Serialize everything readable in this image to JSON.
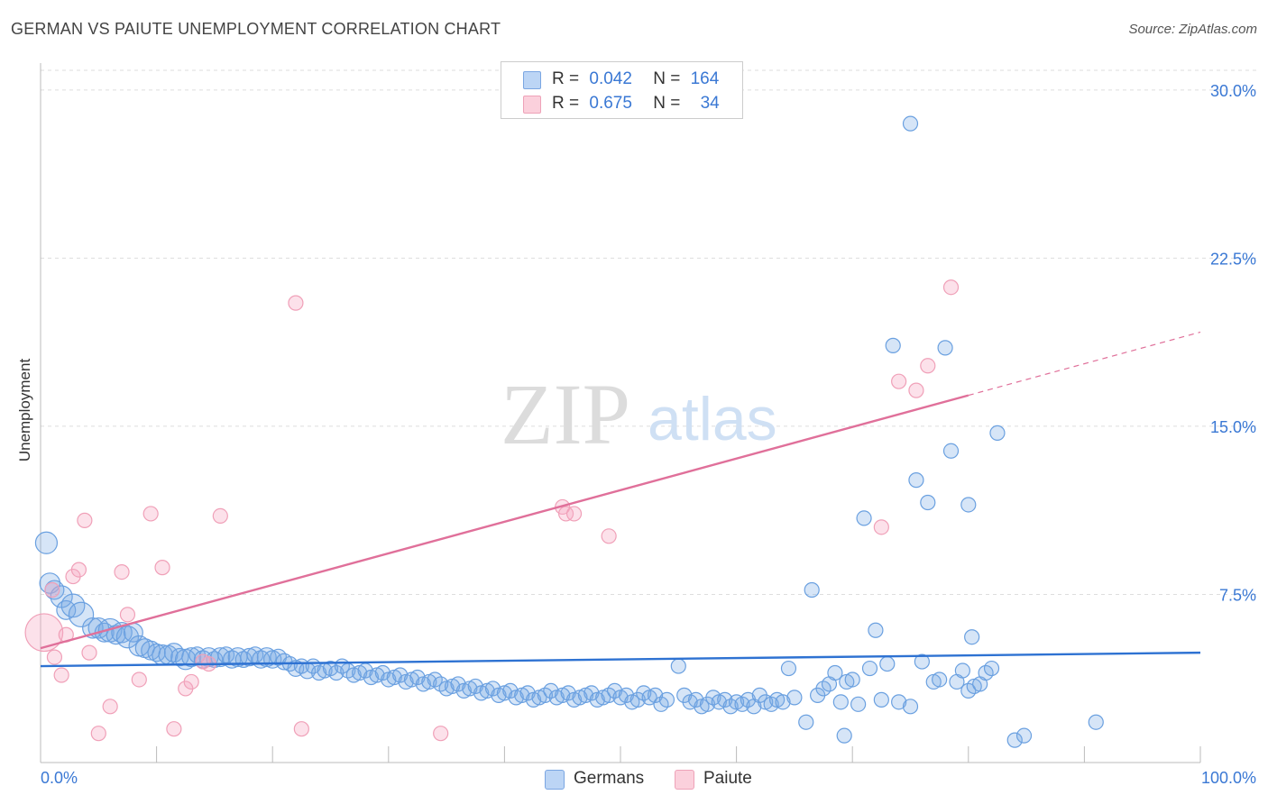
{
  "header": {
    "title": "GERMAN VS PAIUTE UNEMPLOYMENT CORRELATION CHART",
    "source": "Source: ZipAtlas.com"
  },
  "watermark": {
    "zip": "ZIP",
    "atlas": "atlas"
  },
  "legend": {
    "rows": [
      {
        "r_label": "R =",
        "r_value": "0.042",
        "n_label": "N =",
        "n_value": "164",
        "color": "#a9c8f0"
      },
      {
        "r_label": "R =",
        "r_value": "0.675",
        "n_label": "N =",
        "n_value": "34",
        "color": "#f5b8c9"
      }
    ]
  },
  "bottom_legend": {
    "germans": "Germans",
    "paiute": "Paiute"
  },
  "colors": {
    "german_fill": "rgba(120,170,230,0.30)",
    "german_stroke": "#6aa0e0",
    "german_line": "#2e72d2",
    "paiute_fill": "rgba(245,170,195,0.35)",
    "paiute_stroke": "#f0a0b8",
    "paiute_line": "#e0709a",
    "axis_text": "#3a78d4",
    "grid": "#dddddd"
  },
  "chart_data": {
    "type": "scatter",
    "title": "GERMAN VS PAIUTE UNEMPLOYMENT CORRELATION CHART",
    "xlabel": "",
    "ylabel": "Unemployment",
    "xlim": [
      0,
      100
    ],
    "ylim": [
      0,
      31.2
    ],
    "x_tick_labels": [
      "0.0%",
      "100.0%"
    ],
    "y_ticks": [
      7.5,
      15.0,
      22.5,
      30.0
    ],
    "y_tick_labels": [
      "7.5%",
      "15.0%",
      "22.5%",
      "30.0%"
    ],
    "grid": true,
    "legend_position": "top-center",
    "series": [
      {
        "name": "Germans",
        "r": 0.042,
        "n": 164,
        "trend": {
          "x": [
            0,
            100
          ],
          "y": [
            4.3,
            4.9
          ]
        },
        "points": [
          [
            0.5,
            9.8,
            1.5
          ],
          [
            0.8,
            8.0,
            1.4
          ],
          [
            1.2,
            7.7,
            1.3
          ],
          [
            1.8,
            7.4,
            1.5
          ],
          [
            2.2,
            6.8,
            1.3
          ],
          [
            2.8,
            7.0,
            1.6
          ],
          [
            3.5,
            6.6,
            1.7
          ],
          [
            4.5,
            6.0,
            1.4
          ],
          [
            5.0,
            6.0,
            1.4
          ],
          [
            5.5,
            5.8,
            1.3
          ],
          [
            6.0,
            5.9,
            1.6
          ],
          [
            6.5,
            5.7,
            1.3
          ],
          [
            7.0,
            5.8,
            1.4
          ],
          [
            7.5,
            5.6,
            1.5
          ],
          [
            8.0,
            5.8,
            1.3
          ],
          [
            8.5,
            5.2,
            1.4
          ],
          [
            9.0,
            5.1,
            1.3
          ],
          [
            9.5,
            5.0,
            1.3
          ],
          [
            10.0,
            4.9,
            1.2
          ],
          [
            10.5,
            4.8,
            1.4
          ],
          [
            11.0,
            4.8,
            1.3
          ],
          [
            11.5,
            4.9,
            1.3
          ],
          [
            12.0,
            4.7,
            1.2
          ],
          [
            12.5,
            4.6,
            1.4
          ],
          [
            13.0,
            4.7,
            1.3
          ],
          [
            13.5,
            4.8,
            1.1
          ],
          [
            14.0,
            4.6,
            1.2
          ],
          [
            14.5,
            4.7,
            1.3
          ],
          [
            15.0,
            4.6,
            1.1
          ],
          [
            15.5,
            4.7,
            1.3
          ],
          [
            16.0,
            4.8,
            1.1
          ],
          [
            16.5,
            4.6,
            1.2
          ],
          [
            17.0,
            4.7,
            1.3
          ],
          [
            17.5,
            4.6,
            1.1
          ],
          [
            18.0,
            4.7,
            1.2
          ],
          [
            18.5,
            4.8,
            1.1
          ],
          [
            19.0,
            4.6,
            1.2
          ],
          [
            19.5,
            4.7,
            1.3
          ],
          [
            20.0,
            4.6,
            1.2
          ],
          [
            20.5,
            4.7,
            1.1
          ],
          [
            21.0,
            4.5,
            1.1
          ],
          [
            21.5,
            4.4,
            1.0
          ],
          [
            22.0,
            4.2,
            1.1
          ],
          [
            22.5,
            4.3,
            1.0
          ],
          [
            23.0,
            4.1,
            1.1
          ],
          [
            23.5,
            4.3,
            1.0
          ],
          [
            24.0,
            4.0,
            1.0
          ],
          [
            24.5,
            4.1,
            1.0
          ],
          [
            25.0,
            4.2,
            1.0
          ],
          [
            25.5,
            4.0,
            1.0
          ],
          [
            26.0,
            4.3,
            1.0
          ],
          [
            26.5,
            4.1,
            1.0
          ],
          [
            27.0,
            3.9,
            1.0
          ],
          [
            27.5,
            4.0,
            1.0
          ],
          [
            28.0,
            4.1,
            1.0
          ],
          [
            28.5,
            3.8,
            1.0
          ],
          [
            29.0,
            3.9,
            1.0
          ],
          [
            29.5,
            4.0,
            1.0
          ],
          [
            30.0,
            3.7,
            1.0
          ],
          [
            30.5,
            3.8,
            1.0
          ],
          [
            31.0,
            3.9,
            1.0
          ],
          [
            31.5,
            3.6,
            1.0
          ],
          [
            32.0,
            3.7,
            1.0
          ],
          [
            32.5,
            3.8,
            1.0
          ],
          [
            33.0,
            3.5,
            1.0
          ],
          [
            33.5,
            3.6,
            1.0
          ],
          [
            34.0,
            3.7,
            1.0
          ],
          [
            34.5,
            3.5,
            1.0
          ],
          [
            35.0,
            3.3,
            1.0
          ],
          [
            35.5,
            3.4,
            1.0
          ],
          [
            36.0,
            3.5,
            1.0
          ],
          [
            36.5,
            3.2,
            1.0
          ],
          [
            37.0,
            3.3,
            1.0
          ],
          [
            37.5,
            3.4,
            1.0
          ],
          [
            38.0,
            3.1,
            1.0
          ],
          [
            38.5,
            3.2,
            1.0
          ],
          [
            39.0,
            3.3,
            1.0
          ],
          [
            39.5,
            3.0,
            1.0
          ],
          [
            40.0,
            3.1,
            1.0
          ],
          [
            40.5,
            3.2,
            1.0
          ],
          [
            41.0,
            2.9,
            1.0
          ],
          [
            41.5,
            3.0,
            1.0
          ],
          [
            42.0,
            3.1,
            1.0
          ],
          [
            42.5,
            2.8,
            1.0
          ],
          [
            43.0,
            2.9,
            1.0
          ],
          [
            43.5,
            3.0,
            1.0
          ],
          [
            44.0,
            3.2,
            1.0
          ],
          [
            44.5,
            2.9,
            1.0
          ],
          [
            45.0,
            3.0,
            1.0
          ],
          [
            45.5,
            3.1,
            1.0
          ],
          [
            46.0,
            2.8,
            1.0
          ],
          [
            46.5,
            2.9,
            1.0
          ],
          [
            47.0,
            3.0,
            1.0
          ],
          [
            47.5,
            3.1,
            1.0
          ],
          [
            48.0,
            2.8,
            1.0
          ],
          [
            48.5,
            2.9,
            1.0
          ],
          [
            49.0,
            3.0,
            1.0
          ],
          [
            49.5,
            3.2,
            1.0
          ],
          [
            50.0,
            2.9,
            1.0
          ],
          [
            50.5,
            3.0,
            1.0
          ],
          [
            51.0,
            2.7,
            1.0
          ],
          [
            51.5,
            2.8,
            1.0
          ],
          [
            52.0,
            3.1,
            1.0
          ],
          [
            52.5,
            2.9,
            1.0
          ],
          [
            53.0,
            3.0,
            1.0
          ],
          [
            53.5,
            2.6,
            1.0
          ],
          [
            54.0,
            2.8,
            1.0
          ],
          [
            55.0,
            4.3,
            1.0
          ],
          [
            55.5,
            3.0,
            1.0
          ],
          [
            56.0,
            2.7,
            1.0
          ],
          [
            56.5,
            2.8,
            1.0
          ],
          [
            57.0,
            2.5,
            1.0
          ],
          [
            57.5,
            2.6,
            1.0
          ],
          [
            58.0,
            2.9,
            1.0
          ],
          [
            58.5,
            2.7,
            1.0
          ],
          [
            59.0,
            2.8,
            1.0
          ],
          [
            59.5,
            2.5,
            1.0
          ],
          [
            60.0,
            2.7,
            1.0
          ],
          [
            60.5,
            2.6,
            1.0
          ],
          [
            61.0,
            2.8,
            1.0
          ],
          [
            61.5,
            2.5,
            1.0
          ],
          [
            62.0,
            3.0,
            1.0
          ],
          [
            62.5,
            2.7,
            1.0
          ],
          [
            63.0,
            2.6,
            1.0
          ],
          [
            63.5,
            2.8,
            1.0
          ],
          [
            64.0,
            2.7,
            1.0
          ],
          [
            64.5,
            4.2,
            1.0
          ],
          [
            65.0,
            2.9,
            1.0
          ],
          [
            66.0,
            1.8,
            1.0
          ],
          [
            66.5,
            7.7,
            1.0
          ],
          [
            67.0,
            3.0,
            1.0
          ],
          [
            67.5,
            3.3,
            1.0
          ],
          [
            68.0,
            3.5,
            1.0
          ],
          [
            68.5,
            4.0,
            1.0
          ],
          [
            69.0,
            2.7,
            1.0
          ],
          [
            69.5,
            3.6,
            1.0
          ],
          [
            70.0,
            3.7,
            1.0
          ],
          [
            70.5,
            2.6,
            1.0
          ],
          [
            71.0,
            10.9,
            1.0
          ],
          [
            71.5,
            4.2,
            1.0
          ],
          [
            72.0,
            5.9,
            1.0
          ],
          [
            72.5,
            2.8,
            1.0
          ],
          [
            73.0,
            4.4,
            1.0
          ],
          [
            73.5,
            18.6,
            1.0
          ],
          [
            74.0,
            2.7,
            1.0
          ],
          [
            75.0,
            2.5,
            1.0
          ],
          [
            75.5,
            12.6,
            1.0
          ],
          [
            76.0,
            4.5,
            1.0
          ],
          [
            76.5,
            11.6,
            1.0
          ],
          [
            77.0,
            3.6,
            1.0
          ],
          [
            77.5,
            3.7,
            1.0
          ],
          [
            78.0,
            18.5,
            1.0
          ],
          [
            78.5,
            13.9,
            1.0
          ],
          [
            79.0,
            3.6,
            1.0
          ],
          [
            79.5,
            4.1,
            1.0
          ],
          [
            80.0,
            3.2,
            1.0
          ],
          [
            80.5,
            3.4,
            1.0
          ],
          [
            81.0,
            3.5,
            1.0
          ],
          [
            81.5,
            4.0,
            1.0
          ],
          [
            82.0,
            4.2,
            1.0
          ],
          [
            75.0,
            28.5,
            1.0
          ],
          [
            80.0,
            11.5,
            1.0
          ],
          [
            80.3,
            5.6,
            1.0
          ],
          [
            82.5,
            14.7,
            1.0
          ],
          [
            84.0,
            1.0,
            1.0
          ],
          [
            84.8,
            1.2,
            1.0
          ],
          [
            91.0,
            1.8,
            1.0
          ],
          [
            69.3,
            1.2,
            1.0
          ]
        ]
      },
      {
        "name": "Paiute",
        "r": 0.675,
        "n": 34,
        "trend": {
          "x": [
            0,
            100
          ],
          "y": [
            5.1,
            19.2
          ],
          "solid_until": 80
        },
        "points": [
          [
            0.3,
            5.8,
            2.6
          ],
          [
            1.0,
            7.7,
            1.0
          ],
          [
            1.2,
            4.7,
            1.0
          ],
          [
            1.8,
            3.9,
            1.0
          ],
          [
            2.2,
            5.7,
            1.0
          ],
          [
            2.8,
            8.3,
            1.0
          ],
          [
            3.3,
            8.6,
            1.0
          ],
          [
            3.8,
            10.8,
            1.0
          ],
          [
            4.2,
            4.9,
            1.0
          ],
          [
            5.0,
            1.3,
            1.0
          ],
          [
            6.0,
            2.5,
            1.0
          ],
          [
            7.0,
            8.5,
            1.0
          ],
          [
            7.5,
            6.6,
            1.0
          ],
          [
            8.5,
            3.7,
            1.0
          ],
          [
            9.5,
            11.1,
            1.0
          ],
          [
            10.5,
            8.7,
            1.0
          ],
          [
            11.5,
            1.5,
            1.0
          ],
          [
            12.5,
            3.3,
            1.0
          ],
          [
            13.0,
            3.6,
            1.0
          ],
          [
            14.5,
            4.4,
            1.0
          ],
          [
            15.5,
            11.0,
            1.0
          ],
          [
            22.0,
            20.5,
            1.0
          ],
          [
            22.5,
            1.5,
            1.0
          ],
          [
            34.5,
            1.3,
            1.0
          ],
          [
            45.0,
            11.4,
            1.0
          ],
          [
            45.3,
            11.1,
            1.0
          ],
          [
            46.0,
            11.1,
            1.0
          ],
          [
            49.0,
            10.1,
            1.0
          ],
          [
            72.5,
            10.5,
            1.0
          ],
          [
            74.0,
            17.0,
            1.0
          ],
          [
            75.5,
            16.6,
            1.0
          ],
          [
            76.5,
            17.7,
            1.0
          ],
          [
            78.5,
            21.2,
            1.0
          ],
          [
            14.0,
            4.5,
            1.0
          ]
        ]
      }
    ]
  }
}
